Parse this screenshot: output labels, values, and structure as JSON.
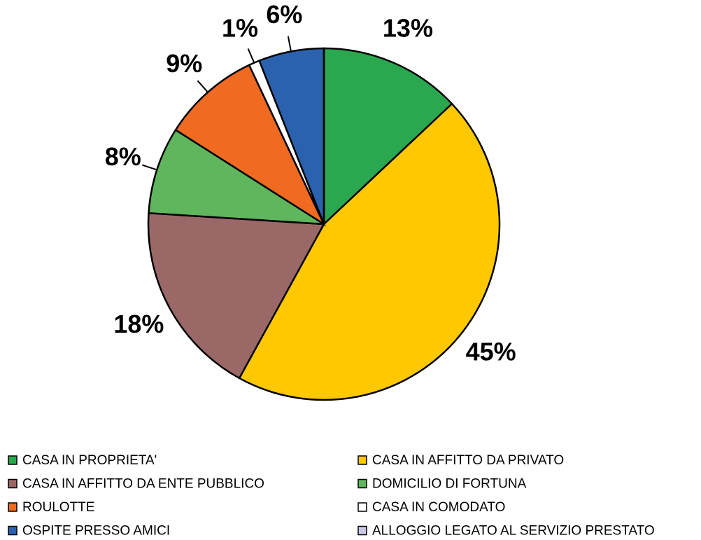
{
  "chart_data": {
    "type": "pie",
    "categories": [
      "CASA IN PROPRIETA'",
      "CASA IN AFFITTO DA PRIVATO",
      "CASA IN AFFITTO DA ENTE PUBBLICO",
      "DOMICILIO DI FORTUNA",
      "ROULOTTE",
      "CASA IN COMODATO",
      "OSPITE PRESSO AMICI",
      "ALLOGGIO LEGATO AL SERVIZIO PRESTATO"
    ],
    "values": [
      13,
      45,
      18,
      8,
      9,
      1,
      6,
      0
    ],
    "value_labels": [
      "13%",
      "45%",
      "18%",
      "8%",
      "9%",
      "1%",
      "6%",
      null
    ],
    "colors": [
      "#2aa84f",
      "#ffc800",
      "#9b6868",
      "#5fb65c",
      "#f06a22",
      "#ffffff",
      "#2a62b0",
      "#c8c8e8"
    ],
    "legend": "bottom"
  }
}
